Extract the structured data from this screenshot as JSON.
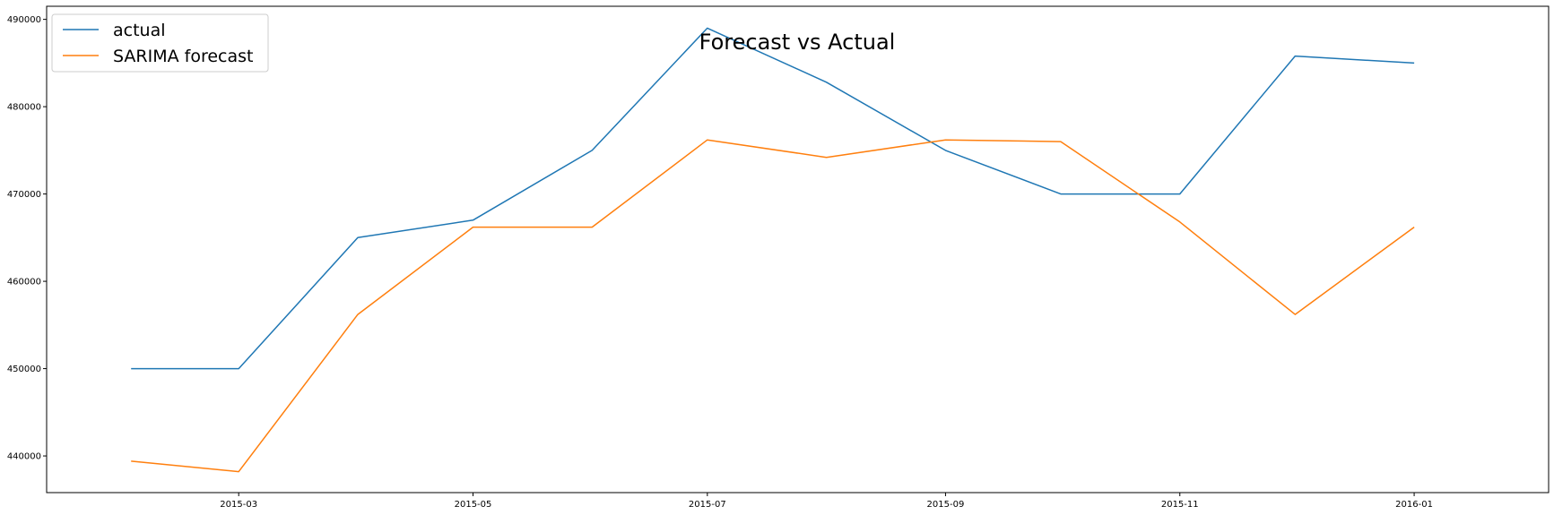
{
  "chart_data": {
    "type": "line",
    "title": "Forecast vs Actual",
    "xlabel": "",
    "ylabel": "",
    "x": [
      "2015-02-01",
      "2015-03-01",
      "2015-04-01",
      "2015-05-01",
      "2015-06-01",
      "2015-07-01",
      "2015-08-01",
      "2015-09-01",
      "2015-10-01",
      "2015-11-01",
      "2015-12-01",
      "2016-01-01"
    ],
    "x_ticks": [
      "2015-03",
      "2015-05",
      "2015-07",
      "2015-09",
      "2015-11",
      "2016-01"
    ],
    "x_tick_dates": [
      "2015-03-01",
      "2015-05-01",
      "2015-07-01",
      "2015-09-01",
      "2015-11-01",
      "2016-01-01"
    ],
    "xlim": [
      "2015-01-10",
      "2016-02-05"
    ],
    "y_ticks": [
      440000,
      450000,
      460000,
      470000,
      480000,
      490000
    ],
    "ylim": [
      435800,
      491500
    ],
    "grid": false,
    "legend_position": "upper-left",
    "series": [
      {
        "name": "actual",
        "color": "#1f77b4",
        "values": [
          450000,
          450000,
          465000,
          467000,
          475000,
          489000,
          482800,
          475000,
          470000,
          470000,
          485800,
          485000
        ]
      },
      {
        "name": "SARIMA forecast",
        "color": "#ff7f0e",
        "values": [
          439400,
          438200,
          456200,
          466200,
          466200,
          476200,
          474200,
          476200,
          476000,
          466800,
          456200,
          466200
        ]
      }
    ]
  }
}
